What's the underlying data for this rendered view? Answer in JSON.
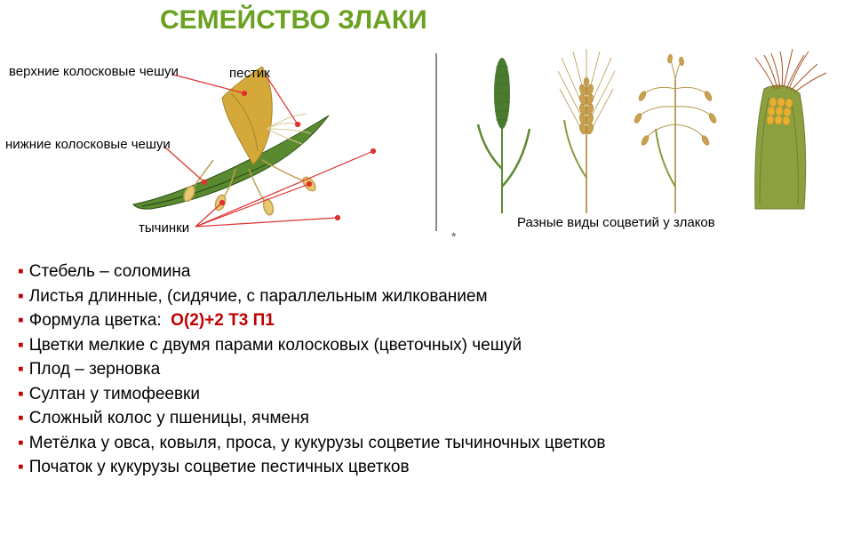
{
  "title": {
    "text": "СЕМЕЙСТВО ЗЛАКИ",
    "color": "#6aa121",
    "fontsize": 30
  },
  "diagram": {
    "labels": {
      "upper_scales": "верхние колосковые чешуи",
      "pistil": "пестик",
      "lower_scales": "нижние колосковые чешуи",
      "stamens": "тычинки"
    },
    "caption": "Разные виды соцветий у злаков",
    "leader_color": "#e03030",
    "flower_colors": {
      "upper_petal": "#d4a93a",
      "lower_petal": "#5a8a2f",
      "lower_petal_dark": "#2d5016",
      "anther": "#e8c870",
      "pistil": "#f0e0b0"
    },
    "plant_colors": {
      "oat_grain": "#c9a050",
      "wheat_grain": "#b8954a",
      "corn_kernel": "#e8b030",
      "corn_husk": "#8ca040",
      "corn_silk": "#a85020",
      "stem_green": "#5a8a2f",
      "leaf_green": "#6a9a3f",
      "spike_green": "#4a7a2f"
    }
  },
  "bullets": [
    {
      "label": "Стебель – соломина",
      "color": "#000000"
    },
    {
      "label": "Листья длинные, (сидячие, с параллельным жилкованием",
      "color": "#000000"
    },
    {
      "label": "Формула цветка:",
      "color": "#000000",
      "formula": "О(2)+2 Т3 П1",
      "formula_color": "#c00000"
    },
    {
      "label": "Цветки мелкие с двумя парами колосковых (цветочных) чешуй",
      "color": "#000000"
    },
    {
      "label": "Плод – зерновка",
      "color": "#000000"
    },
    {
      "label": "Султан у тимофеевки",
      "color": "#000000"
    },
    {
      "label": "Сложный колос  у пшеницы, ячменя",
      "color": "#000000"
    },
    {
      "label": "Метёлка  у овса, ковыля, проса, у кукурузы соцветие тычиночных цветков",
      "color": "#000000"
    },
    {
      "label": "Початок у кукурузы соцветие пестичных цветков",
      "color": "#000000"
    }
  ],
  "bullet_marker_color": "#c00000",
  "star": "*"
}
